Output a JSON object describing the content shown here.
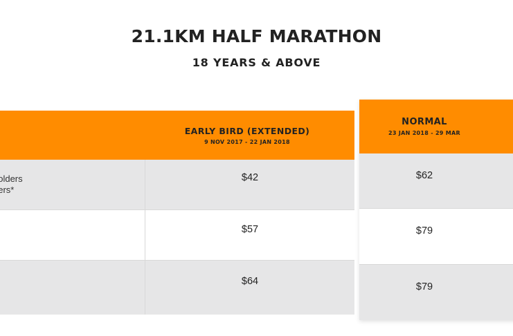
{
  "header": {
    "title": "21.1KM HALF MARATHON",
    "subtitle": "18 YEARS & ABOVE"
  },
  "columns": {
    "early_bird": {
      "label": "EARLY BIRD (EXTENDED)",
      "dates": "9 NOV 2017 - 22 JAN 2018"
    },
    "normal": {
      "label": "NORMAL",
      "dates": "23 JAN 2018 - 29 MAR"
    }
  },
  "rows": [
    {
      "category_lines": [
        "holders",
        "bers*"
      ],
      "early_bird_price": "$42",
      "normal_price": "$62"
    },
    {
      "category_lines": [
        "#"
      ],
      "early_bird_price": "$57",
      "normal_price": "$79"
    },
    {
      "category_lines": [],
      "early_bird_price": "$64",
      "normal_price": "$79"
    }
  ],
  "colors": {
    "accent_orange": "#ff8c00",
    "row_grey": "#e6e6e7",
    "row_white": "#ffffff",
    "text_dark": "#222222"
  }
}
